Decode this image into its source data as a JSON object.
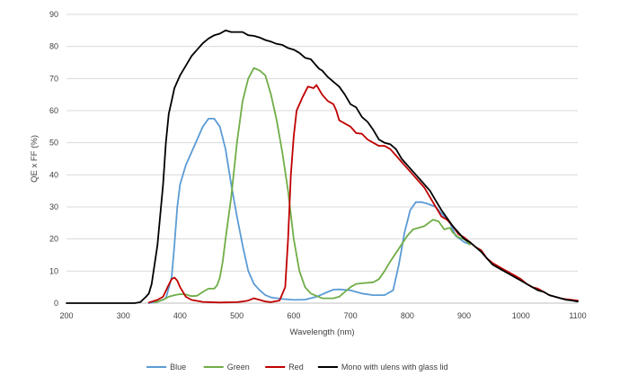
{
  "chart_data": {
    "type": "line",
    "title": "",
    "xlabel": "Wavelength (nm)",
    "ylabel": "QE x FF (%)",
    "xlim": [
      200,
      1100
    ],
    "ylim": [
      0,
      90
    ],
    "xticks": [
      200,
      300,
      400,
      500,
      600,
      700,
      800,
      900,
      1000,
      1100
    ],
    "yticks": [
      0,
      10,
      20,
      30,
      40,
      50,
      60,
      70,
      80,
      90
    ],
    "grid": "horizontal",
    "legend_position": "bottom",
    "series": [
      {
        "name": "Blue",
        "color": "#5b9bd5",
        "points": [
          [
            345,
            0
          ],
          [
            360,
            0.4
          ],
          [
            375,
            1.5
          ],
          [
            385,
            8
          ],
          [
            390,
            18
          ],
          [
            395,
            30
          ],
          [
            400,
            37
          ],
          [
            410,
            43
          ],
          [
            420,
            47
          ],
          [
            430,
            51
          ],
          [
            440,
            55
          ],
          [
            450,
            57.5
          ],
          [
            460,
            57.5
          ],
          [
            470,
            55
          ],
          [
            480,
            48
          ],
          [
            490,
            37
          ],
          [
            500,
            27
          ],
          [
            510,
            18
          ],
          [
            520,
            10
          ],
          [
            530,
            6
          ],
          [
            540,
            4
          ],
          [
            550,
            2.5
          ],
          [
            560,
            1.8
          ],
          [
            580,
            1.3
          ],
          [
            600,
            1.0
          ],
          [
            620,
            1.1
          ],
          [
            640,
            2
          ],
          [
            660,
            3.5
          ],
          [
            670,
            4.2
          ],
          [
            680,
            4.3
          ],
          [
            700,
            4.0
          ],
          [
            720,
            3
          ],
          [
            740,
            2.5
          ],
          [
            760,
            2.5
          ],
          [
            775,
            4
          ],
          [
            785,
            12
          ],
          [
            795,
            22
          ],
          [
            805,
            29
          ],
          [
            815,
            31.5
          ],
          [
            825,
            31.5
          ],
          [
            835,
            31
          ],
          [
            850,
            30
          ],
          [
            865,
            27
          ],
          [
            875,
            25
          ],
          [
            885,
            21
          ],
          [
            900,
            19
          ],
          [
            910,
            18.3
          ]
        ]
      },
      {
        "name": "Green",
        "color": "#70ad47",
        "points": [
          [
            355,
            0.2
          ],
          [
            370,
            1
          ],
          [
            380,
            2
          ],
          [
            390,
            2.5
          ],
          [
            400,
            2.8
          ],
          [
            410,
            2.7
          ],
          [
            420,
            2.2
          ],
          [
            430,
            2.3
          ],
          [
            440,
            3.5
          ],
          [
            450,
            4.5
          ],
          [
            460,
            4.5
          ],
          [
            465,
            5.5
          ],
          [
            470,
            8
          ],
          [
            475,
            13
          ],
          [
            480,
            20
          ],
          [
            490,
            33
          ],
          [
            500,
            50
          ],
          [
            510,
            63
          ],
          [
            520,
            70
          ],
          [
            530,
            73.3
          ],
          [
            540,
            72.5
          ],
          [
            550,
            71
          ],
          [
            560,
            65
          ],
          [
            570,
            57
          ],
          [
            580,
            47
          ],
          [
            590,
            35
          ],
          [
            600,
            20
          ],
          [
            610,
            10
          ],
          [
            620,
            5
          ],
          [
            630,
            3
          ],
          [
            650,
            1.5
          ],
          [
            670,
            1.5
          ],
          [
            680,
            2
          ],
          [
            690,
            3.5
          ],
          [
            700,
            5
          ],
          [
            710,
            6
          ],
          [
            720,
            6.2
          ],
          [
            740,
            6.5
          ],
          [
            750,
            7.5
          ],
          [
            760,
            10
          ],
          [
            770,
            13
          ],
          [
            785,
            17
          ],
          [
            800,
            21
          ],
          [
            810,
            23
          ],
          [
            820,
            23.5
          ],
          [
            830,
            24
          ],
          [
            845,
            26
          ],
          [
            855,
            25.5
          ],
          [
            865,
            23
          ],
          [
            875,
            23.5
          ],
          [
            880,
            22
          ],
          [
            890,
            20.5
          ],
          [
            900,
            20
          ],
          [
            910,
            18.3
          ]
        ]
      },
      {
        "name": "Red",
        "color": "#c00000",
        "points": [
          [
            345,
            0.2
          ],
          [
            360,
            1
          ],
          [
            370,
            2
          ],
          [
            378,
            5
          ],
          [
            385,
            7.5
          ],
          [
            390,
            8
          ],
          [
            395,
            7
          ],
          [
            400,
            5
          ],
          [
            410,
            2
          ],
          [
            420,
            1
          ],
          [
            440,
            0.4
          ],
          [
            470,
            0.2
          ],
          [
            500,
            0.3
          ],
          [
            510,
            0.5
          ],
          [
            520,
            0.8
          ],
          [
            530,
            1.5
          ],
          [
            540,
            1
          ],
          [
            550,
            0.5
          ],
          [
            560,
            0.3
          ],
          [
            575,
            0.8
          ],
          [
            585,
            5
          ],
          [
            590,
            20
          ],
          [
            595,
            40
          ],
          [
            600,
            52
          ],
          [
            605,
            60
          ],
          [
            615,
            64
          ],
          [
            625,
            67.5
          ],
          [
            635,
            67
          ],
          [
            640,
            68
          ],
          [
            650,
            65
          ],
          [
            660,
            63
          ],
          [
            670,
            62
          ],
          [
            675,
            60
          ],
          [
            680,
            57
          ],
          [
            690,
            56
          ],
          [
            700,
            55
          ],
          [
            705,
            54
          ],
          [
            710,
            53
          ],
          [
            720,
            52.8
          ],
          [
            730,
            51
          ],
          [
            740,
            50
          ],
          [
            750,
            49
          ],
          [
            760,
            49
          ],
          [
            770,
            48
          ],
          [
            780,
            46
          ],
          [
            790,
            44
          ],
          [
            800,
            42
          ],
          [
            810,
            40
          ],
          [
            820,
            38
          ],
          [
            830,
            36
          ],
          [
            840,
            33
          ],
          [
            850,
            30
          ],
          [
            860,
            27
          ],
          [
            870,
            26
          ],
          [
            880,
            24
          ],
          [
            890,
            21.5
          ],
          [
            900,
            20.5
          ],
          [
            910,
            19
          ],
          [
            920,
            17.5
          ],
          [
            930,
            16.5
          ],
          [
            940,
            14
          ],
          [
            950,
            12.5
          ],
          [
            960,
            11.5
          ],
          [
            970,
            10.5
          ],
          [
            980,
            9.5
          ],
          [
            990,
            8.5
          ],
          [
            1000,
            7.5
          ],
          [
            1010,
            6
          ],
          [
            1020,
            5
          ],
          [
            1030,
            4.5
          ],
          [
            1040,
            3.5
          ],
          [
            1050,
            2.5
          ],
          [
            1060,
            2
          ],
          [
            1070,
            1.5
          ],
          [
            1080,
            1.2
          ],
          [
            1090,
            1
          ],
          [
            1100,
            0.8
          ]
        ]
      },
      {
        "name": "Mono with ulens with glass lid",
        "color": "#000000",
        "points": [
          [
            200,
            0
          ],
          [
            320,
            0
          ],
          [
            330,
            0.3
          ],
          [
            340,
            2
          ],
          [
            345,
            3
          ],
          [
            350,
            6
          ],
          [
            360,
            18
          ],
          [
            370,
            37
          ],
          [
            375,
            50
          ],
          [
            380,
            59
          ],
          [
            385,
            63
          ],
          [
            390,
            67
          ],
          [
            400,
            71
          ],
          [
            410,
            74
          ],
          [
            420,
            77
          ],
          [
            430,
            79
          ],
          [
            440,
            81
          ],
          [
            450,
            82.5
          ],
          [
            460,
            83.5
          ],
          [
            470,
            84
          ],
          [
            480,
            85
          ],
          [
            490,
            84.5
          ],
          [
            500,
            84.5
          ],
          [
            510,
            84.5
          ],
          [
            520,
            83.5
          ],
          [
            530,
            83.3
          ],
          [
            540,
            82.8
          ],
          [
            550,
            82
          ],
          [
            560,
            81.5
          ],
          [
            570,
            80.8
          ],
          [
            580,
            80.5
          ],
          [
            590,
            79.5
          ],
          [
            600,
            79
          ],
          [
            610,
            78
          ],
          [
            620,
            76.5
          ],
          [
            630,
            76
          ],
          [
            640,
            74
          ],
          [
            645,
            73
          ],
          [
            650,
            72.5
          ],
          [
            660,
            70.5
          ],
          [
            670,
            69
          ],
          [
            680,
            67.5
          ],
          [
            690,
            65
          ],
          [
            700,
            62
          ],
          [
            710,
            61
          ],
          [
            720,
            58
          ],
          [
            730,
            56.5
          ],
          [
            740,
            54
          ],
          [
            750,
            51
          ],
          [
            760,
            50
          ],
          [
            770,
            49.5
          ],
          [
            780,
            48
          ],
          [
            790,
            45
          ],
          [
            800,
            43
          ],
          [
            810,
            41
          ],
          [
            820,
            39
          ],
          [
            830,
            37
          ],
          [
            840,
            35
          ],
          [
            850,
            32
          ],
          [
            860,
            29
          ],
          [
            870,
            26.5
          ],
          [
            880,
            24
          ],
          [
            890,
            22
          ],
          [
            900,
            20
          ],
          [
            910,
            19
          ],
          [
            920,
            17.5
          ],
          [
            930,
            16
          ],
          [
            940,
            14
          ],
          [
            950,
            12
          ],
          [
            960,
            11
          ],
          [
            970,
            10
          ],
          [
            980,
            9
          ],
          [
            990,
            8
          ],
          [
            1000,
            7
          ],
          [
            1010,
            6
          ],
          [
            1020,
            5
          ],
          [
            1030,
            4
          ],
          [
            1040,
            3.5
          ],
          [
            1050,
            2.5
          ],
          [
            1060,
            2
          ],
          [
            1070,
            1.5
          ],
          [
            1080,
            1
          ],
          [
            1090,
            0.8
          ],
          [
            1100,
            0.5
          ]
        ]
      }
    ]
  }
}
